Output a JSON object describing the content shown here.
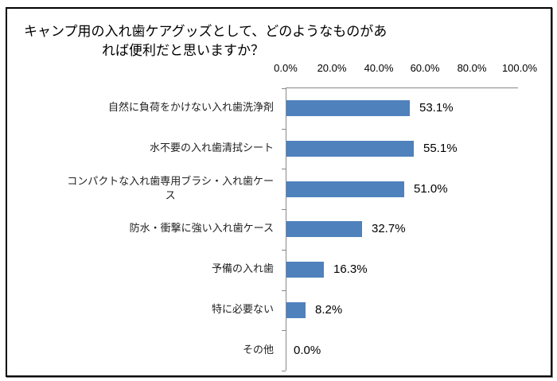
{
  "chart_data": {
    "type": "bar",
    "orientation": "horizontal",
    "title": "キャンプ用の入れ歯ケアグッズとして、どのようなものがあれば便利だと思いますか？",
    "title_lines": [
      "キャンプ用の入れ歯ケアグッズとして、どのようなものがあ",
      "れば便利だと思いますか？"
    ],
    "categories": [
      "自然に負荷をかけない入れ歯洗浄剤",
      "水不要の入れ歯清拭シート",
      "コンパクトな入れ歯専用ブラシ・入れ歯ケース",
      "防水・衝撃に強い入れ歯ケース",
      "予備の入れ歯",
      "特に必要ない",
      "その他"
    ],
    "category_display": [
      [
        "自然に負荷をかけない入れ歯洗浄剤"
      ],
      [
        "水不要の入れ歯清拭シート"
      ],
      [
        "コンパクトな入れ歯専用ブラシ・入れ歯ケー",
        "ス"
      ],
      [
        "防水・衝撃に強い入れ歯ケース"
      ],
      [
        "予備の入れ歯"
      ],
      [
        "特に必要ない"
      ],
      [
        "その他"
      ]
    ],
    "values": [
      53.1,
      55.1,
      51.0,
      32.7,
      16.3,
      8.2,
      0.0
    ],
    "value_labels": [
      "53.1%",
      "55.1%",
      "51.0%",
      "32.7%",
      "16.3%",
      "8.2%",
      "0.0%"
    ],
    "xlabel": "",
    "ylabel": "",
    "xlim": [
      0,
      100
    ],
    "x_tick_labels": [
      "0.0%",
      "20.0%",
      "40.0%",
      "60.0%",
      "80.0%",
      "100.0%"
    ],
    "x_axis_position": "top",
    "grid": false,
    "legend": null,
    "bar_color": "#4f81bd"
  }
}
